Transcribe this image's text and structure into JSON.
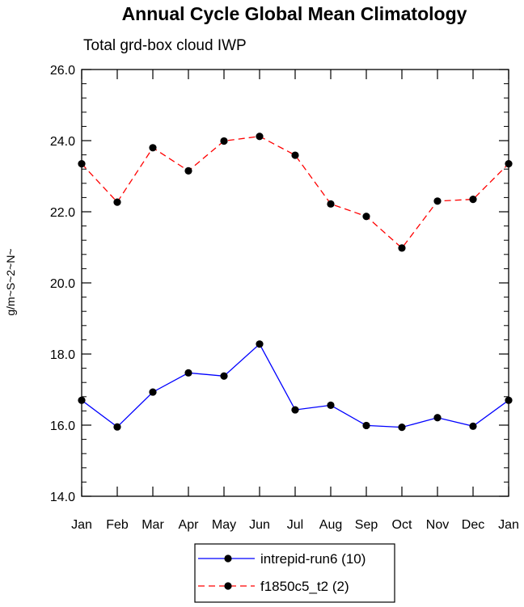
{
  "chart_data": {
    "type": "line",
    "title": "Annual Cycle Global Mean Climatology",
    "subtitle": "Total grd-box cloud IWP",
    "xlabel": "",
    "ylabel": "g/m~S~2~N~",
    "categories": [
      "Jan",
      "Feb",
      "Mar",
      "Apr",
      "May",
      "Jun",
      "Jul",
      "Aug",
      "Sep",
      "Oct",
      "Nov",
      "Dec",
      "Jan"
    ],
    "ylim": [
      14.0,
      26.0
    ],
    "yticks": [
      "14.0",
      "16.0",
      "18.0",
      "20.0",
      "22.0",
      "24.0",
      "26.0"
    ],
    "grid": false,
    "legend_position": "bottom-center",
    "series": [
      {
        "name": "intrepid-run6 (10)",
        "color": "#0000ff",
        "line_style": "solid",
        "marker": "filled-circle",
        "values": [
          16.7,
          15.95,
          16.93,
          17.47,
          17.38,
          18.28,
          16.43,
          16.56,
          15.99,
          15.94,
          16.21,
          15.97,
          16.7
        ]
      },
      {
        "name": "f1850c5_t2 (2)",
        "color": "#ff0000",
        "line_style": "dashed",
        "marker": "filled-circle",
        "values": [
          23.35,
          22.27,
          23.8,
          23.15,
          23.99,
          24.12,
          23.59,
          22.22,
          21.87,
          20.98,
          22.3,
          22.35,
          23.35
        ]
      }
    ]
  }
}
